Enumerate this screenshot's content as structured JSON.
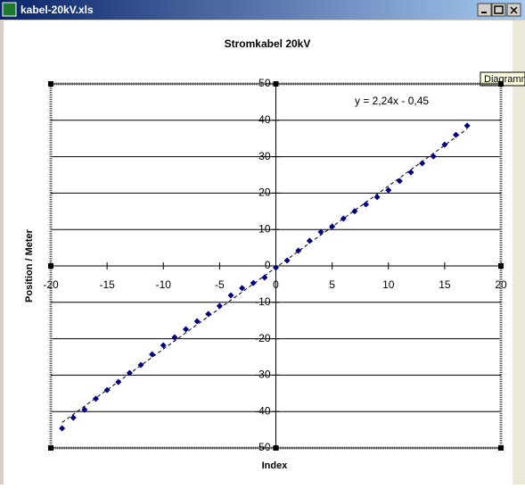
{
  "window": {
    "title": "kabel-20kV.xls",
    "tooltip": "Diagramm"
  },
  "chart_data": {
    "type": "scatter",
    "title": "Stromkabel 20kV",
    "x_label": "Index",
    "y_label": "Position / Meter",
    "x": [
      -19,
      -18,
      -17,
      -16,
      -15,
      -14,
      -13,
      -12,
      -11,
      -10,
      -9,
      -8,
      -7,
      -6,
      -5,
      -4,
      -3,
      -2,
      -1,
      0,
      1,
      2,
      3,
      4,
      5,
      6,
      7,
      8,
      9,
      10,
      11,
      12,
      13,
      14,
      15,
      16,
      17
    ],
    "series": [
      {
        "name": "Position",
        "color": "#000080",
        "values": [
          -44.6,
          -41.7,
          -39.5,
          -36.5,
          -34.1,
          -31.9,
          -29.4,
          -27.2,
          -24.3,
          -21.8,
          -19.6,
          -17.4,
          -15.2,
          -13.2,
          -11.0,
          -8.1,
          -6.1,
          -4.7,
          -3.2,
          -0.5,
          1.5,
          4.2,
          6.9,
          9.3,
          10.8,
          13.0,
          15.0,
          16.9,
          18.9,
          20.8,
          23.3,
          25.7,
          28.2,
          30.1,
          33.3,
          36.0,
          38.5
        ]
      }
    ],
    "trendline": {
      "slope": 2.24,
      "intercept": -0.45,
      "label": "y = 2,24x - 0,45"
    },
    "xlim": [
      -20,
      20
    ],
    "xticks": [
      -20,
      -15,
      -10,
      -5,
      0,
      5,
      10,
      15,
      20
    ],
    "ylim": [
      -50,
      50
    ],
    "yticks": [
      -50,
      -40,
      -30,
      -20,
      -10,
      0,
      10,
      20,
      30,
      40,
      50
    ],
    "grid": true
  }
}
